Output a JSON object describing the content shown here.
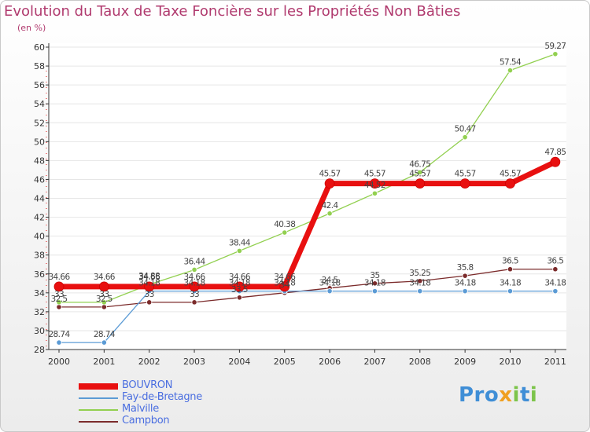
{
  "title": "Evolution du Taux de Taxe Foncière sur les Propriétés Non Bâties",
  "subtitle": "(en %)",
  "logo": "Proxiti",
  "chart_data": {
    "type": "line",
    "title": "Evolution du Taux de Taxe Foncière sur les Propriétés Non Bâties",
    "ylabel": "(en %)",
    "xlabel": "",
    "ylim": [
      28,
      60
    ],
    "yticks": [
      "28",
      "30",
      "32",
      "34",
      "36",
      "38",
      "40",
      "42",
      "44",
      "46",
      "48",
      "50",
      "52",
      "54",
      "56",
      "58",
      "60"
    ],
    "categories": [
      "2000",
      "2001",
      "2002",
      "2003",
      "2004",
      "2005",
      "2006",
      "2007",
      "2008",
      "2009",
      "2010",
      "2011"
    ],
    "legend_position": "bottom-left",
    "series": [
      {
        "name": "BOUVRON",
        "color": "#e81010",
        "values": [
          34.66,
          34.66,
          34.66,
          34.66,
          34.66,
          34.66,
          45.57,
          45.57,
          45.57,
          45.57,
          45.57,
          47.85
        ],
        "labels": [
          "34.66",
          "34.66",
          "34.66",
          "34.66",
          "34.66",
          "34.66",
          "45.57",
          "45.57",
          "45.57",
          "45.57",
          "45.57",
          "47.85"
        ]
      },
      {
        "name": "Fay-de-Bretagne",
        "color": "#5b9bd5",
        "values": [
          28.74,
          28.74,
          34.18,
          34.18,
          34.18,
          34.18,
          34.18,
          34.18,
          34.18,
          34.18,
          34.18,
          34.18
        ],
        "labels": [
          "28.74",
          "28.74",
          "34.18",
          "34.18",
          "34.18",
          "34.18",
          "34.18",
          "34.18",
          "34.18",
          "34.18",
          "34.18",
          "34.18"
        ]
      },
      {
        "name": "Malville",
        "color": "#92d050",
        "values": [
          33.0,
          33.0,
          34.88,
          36.44,
          38.44,
          40.38,
          42.4,
          44.52,
          46.75,
          50.47,
          57.54,
          59.27
        ],
        "labels": [
          "33",
          "33",
          "34.88",
          "36.44",
          "38.44",
          "40.38",
          "42.4",
          "44.52",
          "46.75",
          "50.47",
          "57.54",
          "59.27"
        ]
      },
      {
        "name": "Campbon",
        "color": "#7b2b2b",
        "values": [
          32.5,
          32.5,
          33.0,
          33.0,
          33.5,
          34.0,
          34.5,
          35.0,
          35.25,
          35.8,
          36.5,
          36.5
        ],
        "labels": [
          "32.5",
          "32.5",
          "33",
          "33",
          "33.5",
          "34",
          "34.5",
          "35",
          "35.25",
          "35.8",
          "36.5",
          "36.5"
        ]
      }
    ]
  }
}
